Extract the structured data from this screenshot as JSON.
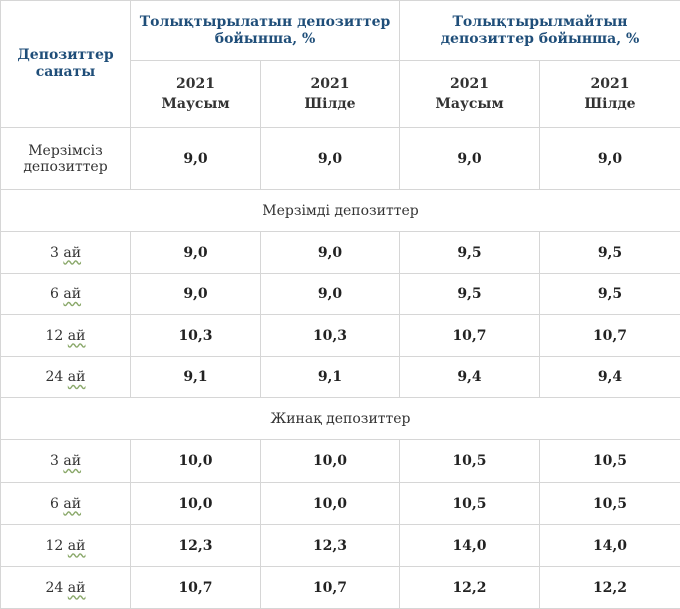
{
  "header": {
    "category": "Депозиттер санаты",
    "group_replenishable": "Толықтырылатын депозиттер бойынша, %",
    "group_non_replenishable": "Толықтырылмайтын депозиттер бойынша, %",
    "columns": [
      {
        "year": "2021",
        "month": "Маусым"
      },
      {
        "year": "2021",
        "month": "Шілде"
      },
      {
        "year": "2021",
        "month": "Маусым"
      },
      {
        "year": "2021",
        "month": "Шілде"
      }
    ]
  },
  "demand": {
    "label": "Мерзімсіз депозиттер",
    "values": [
      "9,0",
      "9,0",
      "9,0",
      "9,0"
    ]
  },
  "term": {
    "title": "Мерзімді депозиттер",
    "rows": [
      {
        "num": "3",
        "unit": "ай",
        "values": [
          "9,0",
          "9,0",
          "9,5",
          "9,5"
        ]
      },
      {
        "num": "6",
        "unit": "ай",
        "values": [
          "9,0",
          "9,0",
          "9,5",
          "9,5"
        ]
      },
      {
        "num": "12",
        "unit": "ай",
        "values": [
          "10,3",
          "10,3",
          "10,7",
          "10,7"
        ]
      },
      {
        "num": "24",
        "unit": "ай",
        "values": [
          "9,1",
          "9,1",
          "9,4",
          "9,4"
        ]
      }
    ]
  },
  "savings": {
    "title": "Жинақ депозиттер",
    "rows": [
      {
        "num": "3",
        "unit": "ай",
        "values": [
          "10,0",
          "10,0",
          "10,5",
          "10,5"
        ]
      },
      {
        "num": "6",
        "unit": "ай",
        "values": [
          "10,0",
          "10,0",
          "10,5",
          "10,5"
        ]
      },
      {
        "num": "12",
        "unit": "ай",
        "values": [
          "12,3",
          "12,3",
          "14,0",
          "14,0"
        ]
      },
      {
        "num": "24",
        "unit": "ай",
        "values": [
          "10,7",
          "10,7",
          "12,2",
          "12,2"
        ]
      }
    ]
  }
}
